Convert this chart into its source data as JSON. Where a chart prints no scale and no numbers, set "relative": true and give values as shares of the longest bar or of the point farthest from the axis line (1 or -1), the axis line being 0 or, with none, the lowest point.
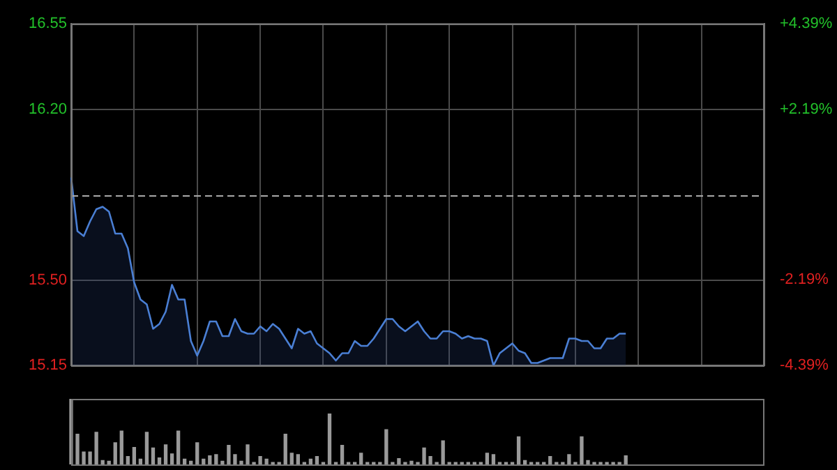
{
  "chart_data": [
    {
      "type": "area",
      "categories": [
        null,
        null,
        null,
        null,
        null,
        null,
        null,
        null,
        null,
        null,
        null,
        null,
        null,
        null,
        null,
        null,
        null,
        null,
        null,
        null,
        null,
        null,
        null,
        null,
        null,
        null,
        null,
        null,
        null,
        null,
        null,
        null,
        null,
        null,
        null,
        null,
        null,
        null,
        null,
        null,
        null,
        null,
        null,
        null,
        null,
        null,
        null,
        null,
        null,
        null,
        null,
        null,
        null,
        null,
        null,
        null,
        null,
        null,
        null,
        null,
        null,
        null,
        null,
        null,
        null,
        null,
        null,
        null,
        null,
        null,
        null,
        null,
        null,
        null,
        null,
        null,
        null,
        null,
        null,
        null,
        null,
        null,
        null,
        null,
        null,
        null,
        null,
        null,
        null,
        null,
        null,
        null,
        null,
        null,
        null,
        null,
        null,
        null,
        null,
        null,
        null,
        null,
        null,
        null,
        null,
        null,
        null,
        null,
        null,
        null,
        null
      ],
      "series": [
        {
          "color": "#4a7fd4",
          "values": [
            15.92,
            15.7,
            15.68,
            15.74,
            15.79,
            15.8,
            15.78,
            15.69,
            15.69,
            15.63,
            15.49,
            15.42,
            15.4,
            15.3,
            15.32,
            15.37,
            15.48,
            15.42,
            15.42,
            15.25,
            15.19,
            15.25,
            15.33,
            15.33,
            15.27,
            15.27,
            15.34,
            15.29,
            15.28,
            15.28,
            15.31,
            15.29,
            15.32,
            15.3,
            15.26,
            15.22,
            15.3,
            15.28,
            15.29,
            15.24,
            15.22,
            15.2,
            15.17,
            15.2,
            15.2,
            15.25,
            15.23,
            15.23,
            15.26,
            15.3,
            15.34,
            15.34,
            15.31,
            15.29,
            15.31,
            15.33,
            15.29,
            15.26,
            15.26,
            15.29,
            15.29,
            15.28,
            15.26,
            15.27,
            15.26,
            15.26,
            15.25,
            15.15,
            15.2,
            15.22,
            15.24,
            15.21,
            15.2,
            15.16,
            15.16,
            15.17,
            15.18,
            15.18,
            15.18,
            15.26,
            15.26,
            15.25,
            15.25,
            15.22,
            15.22,
            15.26,
            15.26,
            15.28,
            15.28,
            null,
            null,
            null,
            null,
            null,
            null,
            null,
            null,
            null,
            null,
            null,
            null,
            null,
            null,
            null,
            null,
            null,
            null,
            null,
            null,
            null,
            null
          ]
        }
      ],
      "ylim": [
        15.15,
        16.55
      ],
      "yticks": [
        {
          "value": 15.15,
          "label": "15.15"
        },
        {
          "value": 15.5,
          "label": "15.50"
        },
        {
          "value": 16.2,
          "label": "16.20"
        },
        {
          "value": 16.55,
          "label": "16.55"
        }
      ],
      "y2lim": [
        -4.39,
        4.39
      ],
      "y2ticks": [
        {
          "value": -4.39,
          "label": "-4.39%"
        },
        {
          "value": -2.19,
          "label": "-2.19%"
        },
        {
          "value": 2.19,
          "label": "+2.19%"
        },
        {
          "value": 4.39,
          "label": "+4.39%"
        }
      ],
      "ref_lines": [
        {
          "axis": "y",
          "value": 15.85,
          "color": "#aaaaaa",
          "line_style": "dashed"
        }
      ],
      "grid": true,
      "legend": false,
      "marker": "none",
      "line_style": "solid"
    },
    {
      "type": "bar",
      "relative": true,
      "categories": [
        null,
        null,
        null,
        null,
        null,
        null,
        null,
        null,
        null,
        null,
        null,
        null,
        null,
        null,
        null,
        null,
        null,
        null,
        null,
        null,
        null,
        null,
        null,
        null,
        null,
        null,
        null,
        null,
        null,
        null,
        null,
        null,
        null,
        null,
        null,
        null,
        null,
        null,
        null,
        null,
        null,
        null,
        null,
        null,
        null,
        null,
        null,
        null,
        null,
        null,
        null,
        null,
        null,
        null,
        null,
        null,
        null,
        null,
        null,
        null,
        null,
        null,
        null,
        null,
        null,
        null,
        null,
        null,
        null,
        null,
        null,
        null,
        null,
        null,
        null,
        null,
        null,
        null,
        null,
        null,
        null,
        null,
        null,
        null,
        null,
        null,
        null,
        null,
        null
      ],
      "series": [
        {
          "color": "#9a9a9a",
          "values": [
            1.0,
            0.46,
            0.19,
            0.19,
            0.49,
            0.06,
            0.05,
            0.33,
            0.51,
            0.12,
            0.26,
            0.08,
            0.49,
            0.25,
            0.1,
            0.3,
            0.16,
            0.51,
            0.08,
            0.05,
            0.33,
            0.08,
            0.13,
            0.15,
            0.05,
            0.29,
            0.15,
            0.05,
            0.3,
            0.03,
            0.12,
            0.08,
            0.03,
            0.03,
            0.46,
            0.17,
            0.15,
            0.03,
            0.08,
            0.12,
            0.03,
            0.77,
            0.03,
            0.29,
            0.03,
            0.03,
            0.17,
            0.03,
            0.03,
            0.03,
            0.53,
            0.03,
            0.09,
            0.03,
            0.05,
            0.03,
            0.25,
            0.12,
            0.03,
            0.36,
            0.03,
            0.03,
            0.03,
            0.03,
            0.03,
            0.03,
            0.17,
            0.15,
            0.03,
            0.03,
            0.03,
            0.42,
            0.06,
            0.03,
            0.03,
            0.03,
            0.12,
            0.03,
            0.03,
            0.15,
            0.03,
            0.42,
            0.06,
            0.03,
            0.03,
            0.03,
            0.03,
            0.03,
            0.13
          ]
        }
      ],
      "legend": false
    }
  ]
}
